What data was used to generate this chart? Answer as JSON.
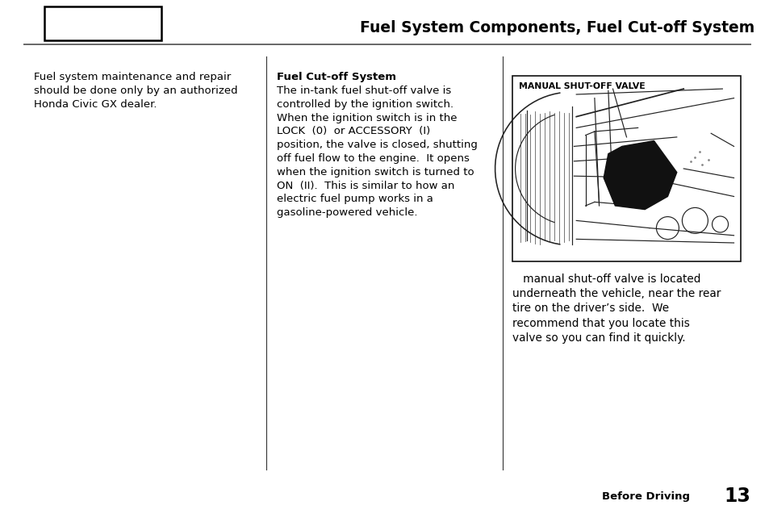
{
  "title": "Fuel System Components, Fuel Cut-off System",
  "page_footer": "Before Driving",
  "page_number": "13",
  "left_text_lines": [
    "Fuel system maintenance and repair",
    "should be done only by an authorized",
    "Honda Civic GX dealer."
  ],
  "middle_heading": "Fuel Cut-off System",
  "middle_text": "The in-tank fuel shut-off valve is\ncontrolled by the ignition switch.\nWhen the ignition switch is in the\nLOCK  (0)  or ACCESSORY  (I)\nposition, the valve is closed, shutting\noff fuel flow to the engine.  It opens\nwhen the ignition switch is turned to\nON  (II).  This is similar to how an\nelectric fuel pump works in a\ngasoline-powered vehicle.",
  "diagram_label": "MANUAL SHUT-OFF VALVE",
  "diagram_caption": "   manual shut-off valve is located\nunderneath the vehicle, near the rear\ntire on the driver’s side.  We\nrecommend that you locate this\nvalve so you can find it quickly.",
  "bg_color": "#ffffff",
  "text_color": "#000000",
  "divider_color": "#666666",
  "rect_box_color": "#000000",
  "figsize": [
    9.54,
    6.47
  ],
  "dpi": 100
}
